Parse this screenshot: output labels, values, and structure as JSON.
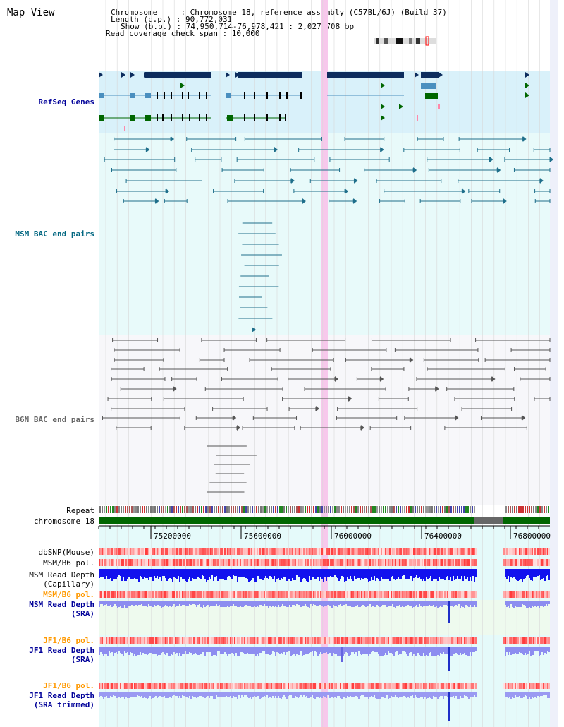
{
  "header": {
    "title": "Map View",
    "chromosome_line": "Chromosome     : Chromosome 18, reference assembly (C57BL/6J) (Build 37)",
    "length_line": "Length (b.p.) : 90,772,031",
    "show_line": "Show (b.p.) : 74,950,714-76,978,421 : 2,027,708 bp",
    "coverage_line": "Read coverage check span : 10,000"
  },
  "tracks": {
    "refseq": "RefSeq Genes",
    "msm_bac": "MSM BAC end pairs",
    "b6n_bac": "B6N BAC end pairs",
    "repeat": "Repeat",
    "chromosome": "chromosome 18",
    "dbsnp": "dbSNP(Mouse)",
    "msm_b6_pol_1": "MSM/B6 pol.",
    "msm_depth_cap_1": "MSM Read Depth",
    "msm_depth_cap_2": "(Capillary)",
    "msm_b6_pol_2": "MSM/B6 pol.",
    "msm_depth_sra_1": "MSM Read Depth",
    "msm_depth_sra_2": "(SRA)",
    "jf1_b6_pol_1": "JF1/B6 pol.",
    "jf1_depth_sra_1": "JF1 Read Depth",
    "jf1_depth_sra_2": "(SRA)",
    "jf1_b6_pol_2": "JF1/B6 pol.",
    "jf1_depth_trim_1": "JF1 Read Depth",
    "jf1_depth_trim_2": "(SRA trimmed)"
  },
  "axis": {
    "ticks": [
      "75200000",
      "75600000",
      "76000000",
      "76400000",
      "76800000"
    ]
  },
  "colors": {
    "refseq_label": "#000099",
    "msm_bac_label": "#006680",
    "b6n_bac_label": "#666666",
    "pol_label": "#ff9900",
    "depth_label": "#000099",
    "gene_dark": "#0d2d5e",
    "gene_mid": "#4a8fbf",
    "gene_green": "#006600",
    "msm_bac_line": "#1f6f8b",
    "b6n_bac_line": "#555555",
    "highlight": "#f7c8ec"
  }
}
